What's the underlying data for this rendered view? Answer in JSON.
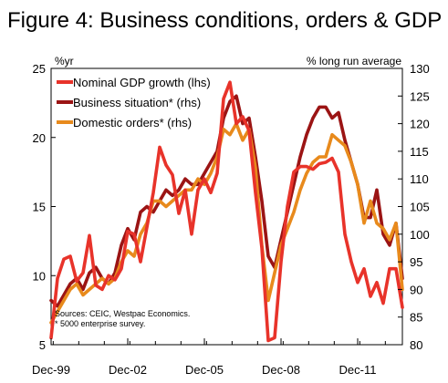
{
  "figure": {
    "title": "Figure 4: Business conditions, orders & GDP",
    "left_unit": "%yr",
    "right_unit": "% long run average",
    "source_lines": [
      "Sources: CEIC, Westpac Economics.",
      "* 5000 enterprise survey."
    ]
  },
  "chart_data": {
    "type": "line",
    "title": "Figure 4: Business conditions, orders & GDP",
    "xlabel": "",
    "ylabel_left": "%yr",
    "ylabel_right": "% long run average",
    "x_ticks": [
      "Dec-99",
      "Dec-02",
      "Dec-05",
      "Dec-08",
      "Dec-11"
    ],
    "x_range": [
      "1999-12",
      "2013-09"
    ],
    "ylim_left": [
      5,
      25
    ],
    "ylim_right": [
      80,
      130
    ],
    "y_ticks_left": [
      5,
      10,
      15,
      20,
      25
    ],
    "y_ticks_right": [
      80,
      85,
      90,
      95,
      100,
      105,
      110,
      115,
      120,
      125,
      130
    ],
    "grid": false,
    "legend_position": "top-left",
    "series": [
      {
        "name": "Nominal GDP growth (lhs)",
        "axis": "left",
        "color": "#e8332a",
        "x": [
          "1999-12",
          "2000-03",
          "2000-06",
          "2000-09",
          "2000-12",
          "2001-03",
          "2001-06",
          "2001-09",
          "2001-12",
          "2002-03",
          "2002-06",
          "2002-09",
          "2002-12",
          "2003-03",
          "2003-06",
          "2003-09",
          "2003-12",
          "2004-03",
          "2004-06",
          "2004-09",
          "2004-12",
          "2005-03",
          "2005-06",
          "2005-09",
          "2005-12",
          "2006-03",
          "2006-06",
          "2006-09",
          "2006-12",
          "2007-03",
          "2007-06",
          "2007-09",
          "2007-12",
          "2008-03",
          "2008-06",
          "2008-09",
          "2008-12",
          "2009-03",
          "2009-06",
          "2009-09",
          "2009-12",
          "2010-03",
          "2010-06",
          "2010-09",
          "2010-12",
          "2011-03",
          "2011-06",
          "2011-09",
          "2011-12",
          "2012-03",
          "2012-06",
          "2012-09",
          "2012-12",
          "2013-03",
          "2013-06",
          "2013-09"
        ],
        "values": [
          5.5,
          9.8,
          11.2,
          11.4,
          9.6,
          10.2,
          12.9,
          9.3,
          9.0,
          10.0,
          9.7,
          10.5,
          13.2,
          13.0,
          11.0,
          13.5,
          16.0,
          19.3,
          18.0,
          17.3,
          14.5,
          16.2,
          13.0,
          16.2,
          17.0,
          16.0,
          17.4,
          22.8,
          24.0,
          21.0,
          21.5,
          20.5,
          16.0,
          12.0,
          5.3,
          5.5,
          11.0,
          15.0,
          17.5,
          17.9,
          17.9,
          17.7,
          18.1,
          18.2,
          18.5,
          17.5,
          13.0,
          11.0,
          9.5,
          10.5,
          8.5,
          9.5,
          8.0,
          10.5,
          10.5,
          7.7
        ]
      },
      {
        "name": "Business situation* (rhs)",
        "axis": "right",
        "color": "#9b1414",
        "x": [
          "1999-12",
          "2000-03",
          "2000-06",
          "2000-09",
          "2000-12",
          "2001-03",
          "2001-06",
          "2001-09",
          "2001-12",
          "2002-03",
          "2002-06",
          "2002-09",
          "2002-12",
          "2003-03",
          "2003-06",
          "2003-09",
          "2003-12",
          "2004-03",
          "2004-06",
          "2004-09",
          "2004-12",
          "2005-03",
          "2005-06",
          "2005-09",
          "2005-12",
          "2006-03",
          "2006-06",
          "2006-09",
          "2006-12",
          "2007-03",
          "2007-06",
          "2007-09",
          "2007-12",
          "2008-03",
          "2008-06",
          "2008-09",
          "2008-12",
          "2009-03",
          "2009-06",
          "2009-09",
          "2009-12",
          "2010-03",
          "2010-06",
          "2010-09",
          "2010-12",
          "2011-03",
          "2011-06",
          "2011-09",
          "2011-12",
          "2012-03",
          "2012-06",
          "2012-09",
          "2012-12",
          "2013-03",
          "2013-06",
          "2013-09"
        ],
        "values": [
          88,
          87,
          89,
          91,
          92,
          90,
          93,
          94,
          92,
          91,
          93,
          98,
          101,
          99,
          104,
          105,
          104,
          106,
          108,
          107,
          108,
          110,
          109,
          109,
          111,
          113,
          115,
          121,
          124,
          125,
          120,
          121,
          114,
          106,
          96,
          94,
          99,
          104,
          109,
          114,
          118,
          121,
          123,
          123,
          121,
          122,
          117,
          113,
          109,
          103,
          103,
          108,
          100,
          98,
          102,
          92
        ]
      },
      {
        "name": "Domestic orders* (rhs)",
        "axis": "right",
        "color": "#e88a1c",
        "x": [
          "1999-12",
          "2000-03",
          "2000-06",
          "2000-09",
          "2000-12",
          "2001-03",
          "2001-06",
          "2001-09",
          "2001-12",
          "2002-03",
          "2002-06",
          "2002-09",
          "2002-12",
          "2003-03",
          "2003-06",
          "2003-09",
          "2003-12",
          "2004-03",
          "2004-06",
          "2004-09",
          "2004-12",
          "2005-03",
          "2005-06",
          "2005-09",
          "2005-12",
          "2006-03",
          "2006-06",
          "2006-09",
          "2006-12",
          "2007-03",
          "2007-06",
          "2007-09",
          "2007-12",
          "2008-03",
          "2008-06",
          "2008-09",
          "2008-12",
          "2009-03",
          "2009-06",
          "2009-09",
          "2009-12",
          "2010-03",
          "2010-06",
          "2010-09",
          "2010-12",
          "2011-03",
          "2011-06",
          "2011-09",
          "2011-12",
          "2012-03",
          "2012-06",
          "2012-09",
          "2012-12",
          "2013-03",
          "2013-06",
          "2013-09"
        ],
        "values": [
          84,
          86,
          88,
          90,
          91,
          89,
          90,
          91,
          92,
          91,
          92,
          95,
          97,
          96,
          100,
          102,
          106,
          106,
          105,
          106,
          107,
          108,
          108,
          110,
          109,
          111,
          114,
          119,
          118,
          120,
          117,
          119,
          112,
          98,
          88,
          93,
          98,
          101,
          104,
          108,
          111,
          113,
          114,
          114,
          118,
          117,
          116,
          113,
          109,
          102,
          106,
          102,
          101,
          99,
          102,
          90
        ]
      }
    ]
  }
}
